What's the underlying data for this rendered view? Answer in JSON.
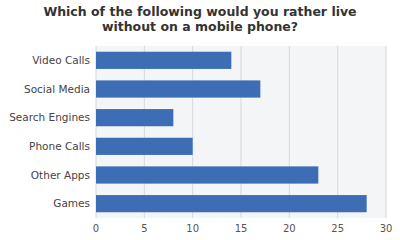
{
  "chart_data": {
    "type": "bar",
    "orientation": "horizontal",
    "title": "Which of the following would you rather live\nwithout on a mobile phone?",
    "categories": [
      "Games",
      "Other Apps",
      "Phone Calls",
      "Search Engines",
      "Social Media",
      "Video Calls"
    ],
    "values": [
      28,
      23,
      10,
      8,
      17,
      14
    ],
    "color": "#3C6DB5",
    "xlim": [
      0,
      30
    ],
    "xticks": [
      0,
      5,
      10,
      15,
      20,
      25,
      30
    ],
    "grid": true
  }
}
